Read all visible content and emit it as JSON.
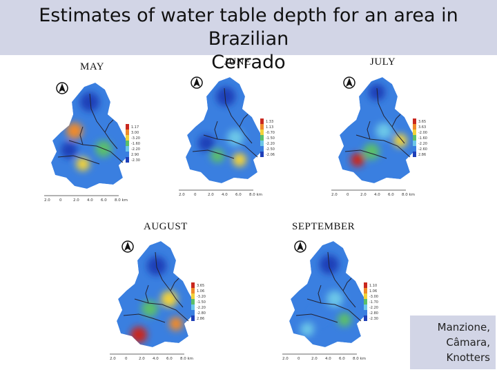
{
  "title_line1": "Estimates of water table depth for an area in Brazilian",
  "title_line2": "Cerrado",
  "maps": [
    {
      "month": "MAY",
      "legend": [
        "1.17",
        "3.00",
        "-3.20",
        "-1.60",
        "-2.20",
        "2.90",
        "-2.30"
      ],
      "scalebar": [
        "2.0",
        "0",
        "2.0",
        "4.0",
        "6.0",
        "8.0 km"
      ]
    },
    {
      "month": "JUNE",
      "legend": [
        "1.33",
        "1.13",
        "-0.70",
        "-1.50",
        "-2.20",
        "-2.50",
        "-2.06"
      ],
      "scalebar": [
        "2.0",
        "0",
        "2.0",
        "4.0",
        "6.0",
        "8.0 km"
      ]
    },
    {
      "month": "JULY",
      "legend": [
        "3.65",
        "3.63",
        "-2.00",
        "-1.60",
        "-2.20",
        "-2.60",
        "2.86"
      ],
      "scalebar": [
        "2.0",
        "0",
        "2.0",
        "4.0",
        "6.0",
        "8.0 km"
      ]
    },
    {
      "month": "AUGUST",
      "legend": [
        "3.65",
        "1.06",
        "-3.20",
        "-1.50",
        "-2.20",
        "-2.80",
        "2.86"
      ],
      "scalebar": [
        "2.0",
        "0",
        "2.0",
        "4.0",
        "6.0",
        "8.0 km"
      ]
    },
    {
      "month": "SEPTEMBER",
      "legend": [
        "1.10",
        "1.06",
        "-3.00",
        "-1.70",
        "-2.20",
        "-2.80",
        "-2.30"
      ],
      "scalebar": [
        "2.0",
        "0",
        "2.0",
        "4.0",
        "6.0",
        "8.0 km"
      ]
    }
  ],
  "credit": {
    "line1": "Manzione,",
    "line2": "Câmara,",
    "line3": "Knotters"
  },
  "north_symbol": "N",
  "colors": {
    "deep_blue": "#1f3fb8",
    "blue": "#3a7fe0",
    "cyan": "#6cc6e8",
    "green": "#5bbf6a",
    "yellow": "#f2d23a",
    "orange": "#f08a2a",
    "red": "#c9281f",
    "band": "#d2d5e6"
  }
}
